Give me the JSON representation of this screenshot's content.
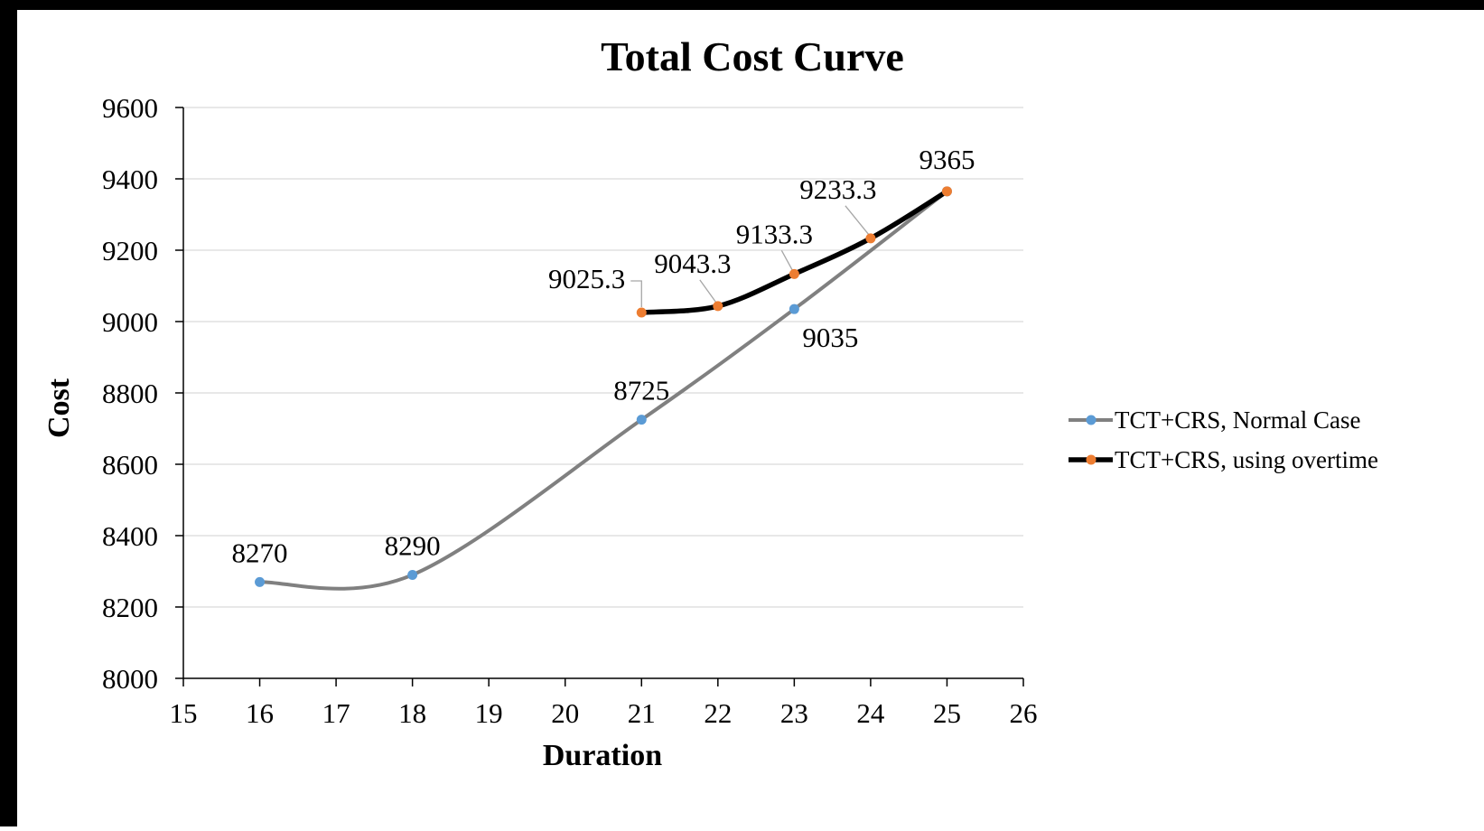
{
  "chart_data": {
    "type": "line",
    "title": "Total Cost Curve",
    "xlabel": "Duration",
    "ylabel": "Cost",
    "xlim": [
      15,
      26
    ],
    "ylim": [
      8000,
      9600
    ],
    "xticks": [
      "15",
      "16",
      "17",
      "18",
      "19",
      "20",
      "21",
      "22",
      "23",
      "24",
      "25",
      "26"
    ],
    "yticks": [
      "8000",
      "8200",
      "8400",
      "8600",
      "8800",
      "9000",
      "9200",
      "9400",
      "9600"
    ],
    "grid": true,
    "legend_position": "right",
    "series": [
      {
        "name": "TCT+CRS, Normal Case",
        "line_color": "#808080",
        "marker_color": "#5b9bd5",
        "x": [
          16,
          18,
          21,
          23,
          25
        ],
        "y": [
          8270,
          8290,
          8725,
          9035,
          9365
        ],
        "labels": [
          "8270",
          "8290",
          "8725",
          "9035",
          "9365"
        ],
        "show_labels": [
          true,
          true,
          true,
          true,
          false
        ]
      },
      {
        "name": "TCT+CRS, using overtime",
        "line_color": "#000000",
        "marker_color": "#ed7d31",
        "x": [
          21,
          22,
          23,
          24,
          25
        ],
        "y": [
          9025.3,
          9043.3,
          9133.3,
          9233.3,
          9365
        ],
        "labels": [
          "9025.3",
          "9043.3",
          "9133.3",
          "9233.3",
          "9365"
        ],
        "show_labels": [
          true,
          true,
          true,
          true,
          true
        ]
      }
    ]
  }
}
